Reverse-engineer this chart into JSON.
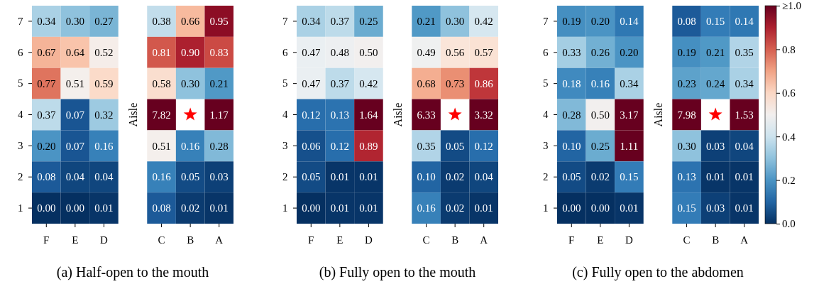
{
  "chart_data": [
    {
      "type": "heatmap",
      "title": "(a) Half-open to the mouth",
      "annotations": [
        "Aisle"
      ],
      "categories": [
        "F",
        "E",
        "D",
        null,
        "C",
        "B",
        "A"
      ],
      "y_categories": [
        "7",
        "6",
        "5",
        "4",
        "3",
        "2",
        "1"
      ],
      "cells": [
        [
          0.34,
          0.3,
          0.27,
          null,
          0.38,
          0.66,
          0.95
        ],
        [
          0.67,
          0.64,
          0.52,
          null,
          0.81,
          0.9,
          0.83
        ],
        [
          0.77,
          0.51,
          0.59,
          null,
          0.58,
          0.3,
          0.21
        ],
        [
          0.37,
          0.07,
          0.32,
          null,
          7.82,
          null,
          1.17
        ],
        [
          0.2,
          0.07,
          0.16,
          null,
          0.51,
          0.16,
          0.28
        ],
        [
          0.08,
          0.04,
          0.04,
          null,
          0.16,
          0.05,
          0.03
        ],
        [
          0.0,
          0.0,
          0.01,
          null,
          0.08,
          0.02,
          0.01
        ]
      ],
      "cell_labels": [
        [
          "0.34",
          "0.30",
          "0.27",
          null,
          "0.38",
          "0.66",
          "0.95"
        ],
        [
          "0.67",
          "0.64",
          "0.52",
          null,
          "0.81",
          "0.90",
          "0.83"
        ],
        [
          "0.77",
          "0.51",
          "0.59",
          null,
          "0.58",
          "0.30",
          "0.21"
        ],
        [
          "0.37",
          "0.07",
          "0.32",
          null,
          "7.82",
          null,
          "1.17"
        ],
        [
          "0.20",
          "0.07",
          "0.16",
          null,
          "0.51",
          "0.16",
          "0.28"
        ],
        [
          "0.08",
          "0.04",
          "0.04",
          null,
          "0.16",
          "0.05",
          "0.03"
        ],
        [
          "0.00",
          "0.00",
          "0.01",
          null,
          "0.08",
          "0.02",
          "0.01"
        ]
      ]
    },
    {
      "type": "heatmap",
      "title": "(b) Fully open to the mouth",
      "annotations": [
        "Aisle"
      ],
      "categories": [
        "F",
        "E",
        "D",
        null,
        "C",
        "B",
        "A"
      ],
      "y_categories": [
        "7",
        "6",
        "5",
        "4",
        "3",
        "2",
        "1"
      ],
      "cells": [
        [
          0.34,
          0.37,
          0.25,
          null,
          0.21,
          0.3,
          0.42
        ],
        [
          0.47,
          0.48,
          0.5,
          null,
          0.49,
          0.56,
          0.57
        ],
        [
          0.47,
          0.37,
          0.42,
          null,
          0.68,
          0.73,
          0.86
        ],
        [
          0.12,
          0.13,
          1.64,
          null,
          6.33,
          null,
          3.32
        ],
        [
          0.06,
          0.12,
          0.89,
          null,
          0.35,
          0.05,
          0.12
        ],
        [
          0.05,
          0.01,
          0.01,
          null,
          0.1,
          0.02,
          0.04
        ],
        [
          0.0,
          0.01,
          0.01,
          null,
          0.16,
          0.02,
          0.01
        ]
      ],
      "cell_labels": [
        [
          "0.34",
          "0.37",
          "0.25",
          null,
          "0.21",
          "0.30",
          "0.42"
        ],
        [
          "0.47",
          "0.48",
          "0.50",
          null,
          "0.49",
          "0.56",
          "0.57"
        ],
        [
          "0.47",
          "0.37",
          "0.42",
          null,
          "0.68",
          "0.73",
          "0.86"
        ],
        [
          "0.12",
          "0.13",
          "1.64",
          null,
          "6.33",
          null,
          "3.32"
        ],
        [
          "0.06",
          "0.12",
          "0.89",
          null,
          "0.35",
          "0.05",
          "0.12"
        ],
        [
          "0.05",
          "0.01",
          "0.01",
          null,
          "0.10",
          "0.02",
          "0.04"
        ],
        [
          "0.00",
          "0.01",
          "0.01",
          null,
          "0.16",
          "0.02",
          "0.01"
        ]
      ]
    },
    {
      "type": "heatmap",
      "title": "(c) Fully open to the abdomen",
      "annotations": [
        "Aisle"
      ],
      "categories": [
        "F",
        "E",
        "D",
        null,
        "C",
        "B",
        "A"
      ],
      "y_categories": [
        "7",
        "6",
        "5",
        "4",
        "3",
        "2",
        "1"
      ],
      "cells": [
        [
          0.19,
          0.2,
          0.14,
          null,
          0.08,
          0.15,
          0.14
        ],
        [
          0.33,
          0.26,
          0.2,
          null,
          0.19,
          0.21,
          0.35
        ],
        [
          0.18,
          0.16,
          0.34,
          null,
          0.23,
          0.24,
          0.34
        ],
        [
          0.28,
          0.5,
          3.17,
          null,
          7.98,
          null,
          1.53
        ],
        [
          0.1,
          0.25,
          1.11,
          null,
          0.3,
          0.03,
          0.04
        ],
        [
          0.05,
          0.02,
          0.15,
          null,
          0.13,
          0.01,
          0.01
        ],
        [
          0.0,
          0.0,
          0.01,
          null,
          0.15,
          0.03,
          0.01
        ]
      ],
      "cell_labels": [
        [
          "0.19",
          "0.20",
          "0.14",
          null,
          "0.08",
          "0.15",
          "0.14"
        ],
        [
          "0.33",
          "0.26",
          "0.20",
          null,
          "0.19",
          "0.21",
          "0.35"
        ],
        [
          "0.18",
          "0.16",
          "0.34",
          null,
          "0.23",
          "0.24",
          "0.34"
        ],
        [
          "0.28",
          "0.50",
          "3.17",
          null,
          "7.98",
          null,
          "1.53"
        ],
        [
          "0.10",
          "0.25",
          "1.11",
          null,
          "0.30",
          "0.03",
          "0.04"
        ],
        [
          "0.05",
          "0.02",
          "0.15",
          null,
          "0.13",
          "0.01",
          "0.01"
        ],
        [
          "0.00",
          "0.00",
          "0.01",
          null,
          "0.15",
          "0.03",
          "0.01"
        ]
      ],
      "clim": [
        0,
        1
      ],
      "cticks": [
        {
          "value": 0,
          "label": "0.0"
        },
        0.2,
        0.4,
        0.6,
        0.8,
        {
          "value": 1,
          "label": "≥1.0"
        }
      ]
    }
  ]
}
